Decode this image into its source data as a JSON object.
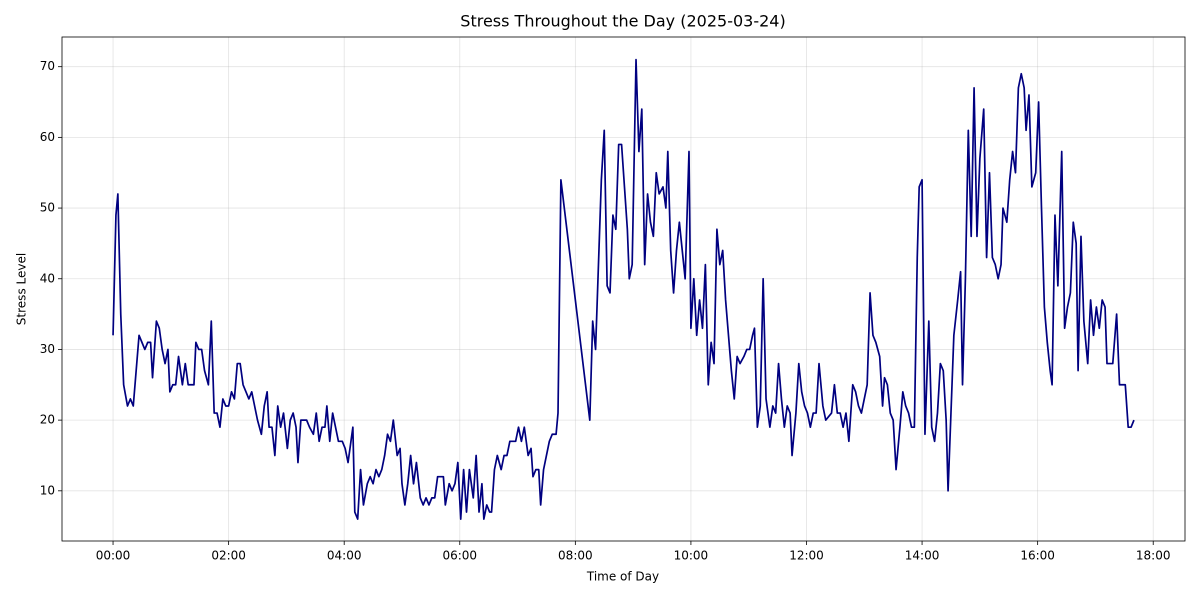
{
  "chart_data": {
    "type": "line",
    "title": "Stress Throughout the Day (2025-03-24)",
    "x_label": "Time of Day",
    "y_label": "Stress Level",
    "xlim": [
      -53,
      1113
    ],
    "ylim": [
      2.9,
      74.2
    ],
    "xticks": [
      {
        "value": 0,
        "label": "00:00"
      },
      {
        "value": 120,
        "label": "02:00"
      },
      {
        "value": 240,
        "label": "04:00"
      },
      {
        "value": 360,
        "label": "06:00"
      },
      {
        "value": 480,
        "label": "08:00"
      },
      {
        "value": 600,
        "label": "10:00"
      },
      {
        "value": 720,
        "label": "12:00"
      },
      {
        "value": 840,
        "label": "14:00"
      },
      {
        "value": 960,
        "label": "16:00"
      },
      {
        "value": 1080,
        "label": "18:00"
      }
    ],
    "yticks": [
      10,
      20,
      30,
      40,
      50,
      60,
      70
    ],
    "grid": true,
    "x": [
      0,
      3,
      5,
      8,
      11,
      15,
      18,
      21,
      27,
      30,
      33,
      36,
      39,
      41,
      45,
      48,
      51,
      54,
      57,
      59,
      62,
      65,
      68,
      72,
      75,
      78,
      81,
      84,
      86,
      89,
      92,
      95,
      99,
      102,
      105,
      108,
      111,
      114,
      117,
      120,
      123,
      126,
      129,
      132,
      135,
      138,
      141,
      144,
      147,
      150,
      154,
      157,
      160,
      162,
      165,
      168,
      171,
      174,
      177,
      181,
      184,
      187,
      190,
      192,
      195,
      198,
      201,
      204,
      208,
      211,
      214,
      217,
      220,
      222,
      225,
      228,
      231,
      234,
      238,
      241,
      244,
      247,
      249,
      251,
      254,
      257,
      260,
      264,
      267,
      270,
      273,
      276,
      279,
      282,
      285,
      288,
      291,
      295,
      298,
      300,
      303,
      306,
      309,
      312,
      315,
      319,
      322,
      325,
      328,
      331,
      334,
      337,
      340,
      343,
      345,
      349,
      352,
      355,
      358,
      361,
      364,
      367,
      370,
      374,
      377,
      380,
      383,
      385,
      388,
      391,
      393,
      396,
      399,
      403,
      406,
      409,
      412,
      415,
      418,
      421,
      424,
      427,
      431,
      434,
      436,
      439,
      442,
      444,
      447,
      450,
      453,
      456,
      460,
      462,
      465,
      495,
      498,
      501,
      504,
      507,
      510,
      513,
      516,
      519,
      522,
      525,
      528,
      531,
      534,
      536,
      539,
      543,
      546,
      549,
      552,
      555,
      558,
      561,
      564,
      567,
      571,
      574,
      576,
      579,
      582,
      585,
      588,
      591,
      594,
      598,
      600,
      603,
      606,
      609,
      612,
      615,
      618,
      621,
      624,
      627,
      630,
      633,
      636,
      639,
      642,
      645,
      648,
      651,
      655,
      658,
      661,
      664,
      666,
      669,
      672,
      675,
      678,
      682,
      685,
      688,
      691,
      694,
      697,
      700,
      703,
      705,
      709,
      712,
      715,
      718,
      721,
      724,
      727,
      730,
      733,
      737,
      740,
      743,
      746,
      749,
      752,
      755,
      758,
      761,
      764,
      768,
      771,
      774,
      777,
      780,
      783,
      786,
      789,
      792,
      796,
      799,
      801,
      804,
      807,
      810,
      813,
      817,
      820,
      823,
      826,
      829,
      832,
      835,
      837,
      840,
      843,
      847,
      850,
      853,
      856,
      859,
      862,
      865,
      867,
      870,
      873,
      877,
      880,
      882,
      885,
      888,
      891,
      894,
      897,
      900,
      904,
      907,
      910,
      913,
      916,
      919,
      922,
      924,
      928,
      931,
      934,
      937,
      940,
      943,
      946,
      948,
      951,
      954,
      958,
      961,
      964,
      967,
      970,
      973,
      975,
      978,
      981,
      985,
      988,
      991,
      994,
      997,
      1000,
      1002,
      1005,
      1008,
      1012,
      1015,
      1018,
      1021,
      1024,
      1027,
      1030,
      1032,
      1035,
      1038,
      1042,
      1045,
      1048,
      1051,
      1054,
      1057,
      1060
    ],
    "series": [
      {
        "color": "#000080",
        "values": [
          32,
          49,
          52,
          35,
          25,
          22,
          23,
          22,
          32,
          31,
          30,
          31,
          31,
          26,
          34,
          33,
          30,
          28,
          30,
          24,
          25,
          25,
          29,
          25,
          28,
          25,
          25,
          25,
          31,
          30,
          30,
          27,
          25,
          34,
          21,
          21,
          19,
          23,
          22,
          22,
          24,
          23,
          28,
          28,
          25,
          24,
          23,
          24,
          22,
          20,
          18,
          22,
          24,
          19,
          19,
          15,
          22,
          19,
          21,
          16,
          20,
          21,
          19,
          14,
          20,
          20,
          20,
          19,
          18,
          21,
          17,
          19,
          19,
          22,
          17,
          21,
          19,
          17,
          17,
          16,
          14,
          17,
          19,
          7,
          6,
          13,
          8,
          11,
          12,
          11,
          13,
          12,
          13,
          15,
          18,
          17,
          20,
          15,
          16,
          11,
          8,
          11,
          15,
          11,
          14,
          9,
          8,
          9,
          8,
          9,
          9,
          12,
          12,
          12,
          8,
          11,
          10,
          11,
          14,
          6,
          13,
          7,
          13,
          9,
          15,
          7,
          11,
          6,
          8,
          7,
          7,
          13,
          15,
          13,
          15,
          15,
          17,
          17,
          17,
          19,
          17,
          19,
          15,
          16,
          12,
          13,
          13,
          8,
          13,
          15,
          17,
          18,
          18,
          21,
          54,
          20,
          34,
          30,
          42,
          54,
          61,
          39,
          38,
          49,
          47,
          59,
          59,
          53,
          47,
          40,
          42,
          71,
          58,
          64,
          42,
          52,
          48,
          46,
          55,
          52,
          53,
          50,
          58,
          44,
          38,
          44,
          48,
          44,
          40,
          58,
          33,
          40,
          32,
          37,
          33,
          42,
          25,
          31,
          28,
          47,
          42,
          44,
          37,
          32,
          27,
          23,
          29,
          28,
          29,
          30,
          30,
          32,
          33,
          19,
          22,
          40,
          23,
          19,
          22,
          21,
          28,
          23,
          19,
          22,
          21,
          15,
          21,
          28,
          24,
          22,
          21,
          19,
          21,
          21,
          28,
          22,
          20,
          20.5,
          21,
          25,
          21,
          21,
          19,
          21,
          17,
          25,
          24,
          22,
          21,
          23,
          25,
          38,
          32,
          31,
          29,
          22,
          26,
          25,
          21,
          20,
          13,
          19,
          24,
          22,
          21,
          19,
          19,
          43,
          53,
          54,
          18,
          34,
          19,
          17,
          21,
          28,
          27,
          20,
          10,
          21,
          32,
          37,
          41,
          25,
          40,
          61,
          46,
          67,
          46,
          57,
          64,
          43,
          55,
          43,
          42,
          40,
          42,
          50,
          48,
          54,
          58,
          55,
          67,
          69,
          67,
          61,
          66,
          53,
          55,
          65,
          50,
          36,
          31,
          27,
          25,
          49,
          39,
          58,
          33,
          36,
          38,
          48,
          45,
          27,
          46,
          34,
          28,
          37,
          32,
          36,
          33,
          37,
          36,
          28,
          28,
          28,
          35,
          25,
          25,
          25,
          19,
          19,
          20
        ]
      }
    ]
  }
}
